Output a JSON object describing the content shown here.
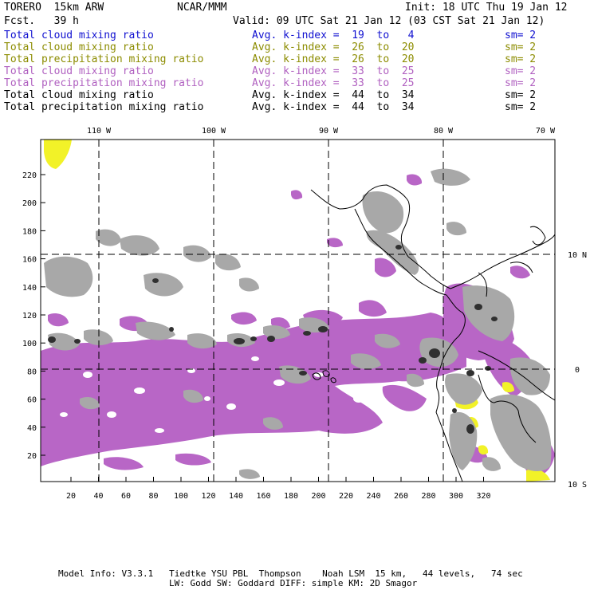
{
  "header": {
    "model": "TORERO  15km ARW",
    "org": "NCAR/MMM",
    "init": "Init: 18 UTC Thu 19 Jan 12",
    "fcst": "Fcst.   39 h",
    "valid": "Valid: 09 UTC Sat 21 Jan 12 (03 CST Sat 21 Jan 12)"
  },
  "legend": [
    {
      "field": "Total cloud mixing ratio",
      "kindex": "Avg. k-index =  19  to   4",
      "sm": "sm= 2",
      "color": "#1010d0"
    },
    {
      "field": "Total cloud mixing ratio",
      "kindex": "Avg. k-index =  26  to  20",
      "sm": "sm= 2",
      "color": "#8c8c00"
    },
    {
      "field": "Total precipitation mixing ratio",
      "kindex": "Avg. k-index =  26  to  20",
      "sm": "sm= 2",
      "color": "#8c8c00"
    },
    {
      "field": "Total cloud mixing ratio",
      "kindex": "Avg. k-index =  33  to  25",
      "sm": "sm= 2",
      "color": "#b060c0"
    },
    {
      "field": "Total precipitation mixing ratio",
      "kindex": "Avg. k-index =  33  to  25",
      "sm": "sm= 2",
      "color": "#b060c0"
    },
    {
      "field": "Total cloud mixing ratio",
      "kindex": "Avg. k-index =  44  to  34",
      "sm": "sm= 2",
      "color": "#000000"
    },
    {
      "field": "Total precipitation mixing ratio",
      "kindex": "Avg. k-index =  44  to  34",
      "sm": "sm= 2",
      "color": "#000000"
    }
  ],
  "map": {
    "lon_labels": [
      "110 W",
      "100 W",
      "90 W",
      "80 W",
      "70 W"
    ],
    "lat_labels": [
      "10 N",
      "0",
      "10 S"
    ],
    "x_ticks": [
      "20",
      "40",
      "60",
      "80",
      "100",
      "120",
      "140",
      "160",
      "180",
      "200",
      "220",
      "240",
      "260",
      "280",
      "300",
      "320"
    ],
    "y_ticks": [
      "20",
      "40",
      "60",
      "80",
      "100",
      "120",
      "140",
      "160",
      "180",
      "200",
      "220"
    ],
    "colors": {
      "gray": "#a8a8a8",
      "purple": "#b866c6",
      "yellow": "#f2f228",
      "dark": "#303030"
    }
  },
  "footer": {
    "line1": "Model Info: V3.3.1   Tiedtke YSU PBL  Thompson    Noah LSM  15 km,   44 levels,   74 sec",
    "line2": "LW: Godd SW: Goddard DIFF: simple KM: 2D Smagor"
  }
}
